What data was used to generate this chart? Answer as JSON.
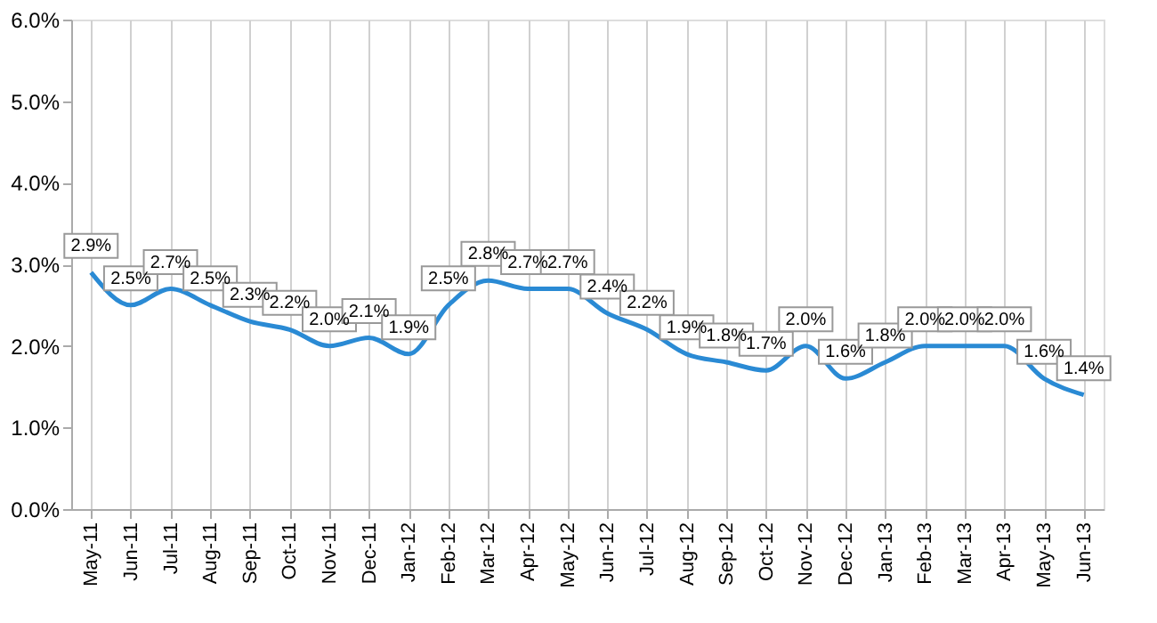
{
  "chart_data": {
    "type": "line",
    "categories": [
      "May-11",
      "Jun-11",
      "Jul-11",
      "Aug-11",
      "Sep-11",
      "Oct-11",
      "Nov-11",
      "Dec-11",
      "Jan-12",
      "Feb-12",
      "Mar-12",
      "Apr-12",
      "May-12",
      "Jun-12",
      "Jul-12",
      "Aug-12",
      "Sep-12",
      "Oct-12",
      "Nov-12",
      "Dec-12",
      "Jan-13",
      "Feb-13",
      "Mar-13",
      "Apr-13",
      "May-13",
      "Jun-13"
    ],
    "series": [
      {
        "color": "#2a8ad4",
        "values": [
          2.9,
          2.5,
          2.7,
          2.5,
          2.3,
          2.2,
          2.0,
          2.1,
          1.9,
          2.5,
          2.8,
          2.7,
          2.7,
          2.4,
          2.2,
          1.9,
          1.8,
          1.7,
          2.0,
          1.6,
          1.8,
          2.0,
          2.0,
          2.0,
          1.6,
          1.4
        ],
        "value_labels": [
          "2.9%",
          "2.5%",
          "2.7%",
          "2.5%",
          "2.3%",
          "2.2%",
          "2.0%",
          "2.1%",
          "1.9%",
          "2.5%",
          "2.8%",
          "2.7%",
          "2.7%",
          "2.4%",
          "2.2%",
          "1.9%",
          "1.8%",
          "1.7%",
          "2.0%",
          "1.6%",
          "1.8%",
          "2.0%",
          "2.0%",
          "2.0%",
          "1.6%",
          "1.4%"
        ]
      }
    ],
    "ylim": [
      0,
      6
    ],
    "yticks": [
      {
        "value": 0,
        "label": "0.0%"
      },
      {
        "value": 1,
        "label": "1.0%"
      },
      {
        "value": 2,
        "label": "2.0%"
      },
      {
        "value": 3,
        "label": "3.0%"
      },
      {
        "value": 4,
        "label": "4.0%"
      },
      {
        "value": 5,
        "label": "5.0%"
      },
      {
        "value": 6,
        "label": "6.0%"
      }
    ],
    "grid": "x",
    "marker": "none",
    "line_style": "solid"
  }
}
